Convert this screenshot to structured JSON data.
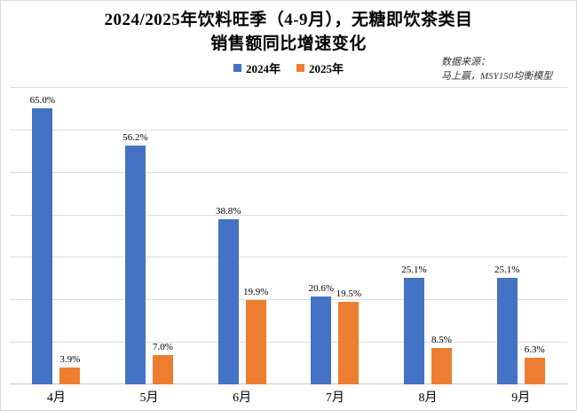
{
  "title": {
    "line1": "2024/2025年饮料旺季（4-9月），无糖即饮茶类目",
    "line2": "销售额同比增速变化"
  },
  "legend": {
    "items": [
      {
        "label": "2024年",
        "color": "#4472C4"
      },
      {
        "label": "2025年",
        "color": "#ED7D31"
      }
    ]
  },
  "source": {
    "line1": "数据来源：",
    "line2": "马上赢，MSY150均衡模型"
  },
  "colors": {
    "series_2024": "#4472C4",
    "series_2025": "#ED7D31",
    "gridline": "#dcdcdc",
    "background": "#ffffff"
  },
  "chart_data": {
    "type": "bar",
    "title": "2024/2025年饮料旺季（4-9月），无糖即饮茶类目销售额同比增速变化",
    "categories": [
      "4月",
      "5月",
      "6月",
      "7月",
      "8月",
      "9月"
    ],
    "series": [
      {
        "name": "2024年",
        "color": "#4472C4",
        "values": [
          65.0,
          56.2,
          38.8,
          20.6,
          25.1,
          25.1
        ],
        "labels": [
          "65.0%",
          "56.2%",
          "38.8%",
          "20.6%",
          "25.1%",
          "25.1%"
        ]
      },
      {
        "name": "2025年",
        "color": "#ED7D31",
        "values": [
          3.9,
          7.0,
          19.9,
          19.5,
          8.5,
          6.3
        ],
        "labels": [
          "3.9%",
          "7.0%",
          "19.9%",
          "19.5%",
          "8.5%",
          "6.3%"
        ]
      }
    ],
    "xlabel": "",
    "ylabel": "",
    "ylim": [
      0,
      70
    ],
    "gridline_interval": 10,
    "grid": true,
    "y_tick_labels_visible": false,
    "legend_position": "top-center",
    "data_labels": true
  }
}
